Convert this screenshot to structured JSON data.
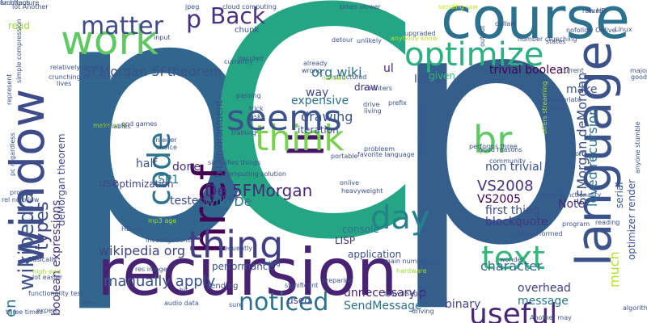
{
  "title": "",
  "words": [
    {
      "text": "p",
      "color": "#31668e"
    },
    {
      "text": "C",
      "color": "#25a584"
    },
    {
      "text": "p",
      "color": "#345f8d"
    },
    {
      "text": "recursion",
      "color": "#482374"
    },
    {
      "text": "window",
      "color": "#3e4c8a"
    },
    {
      "text": "language",
      "color": "#3b528b"
    },
    {
      "text": "course",
      "color": "#2c718e"
    },
    {
      "text": "work",
      "color": "#5ec962"
    },
    {
      "text": "href",
      "color": "#440154"
    },
    {
      "text": "li",
      "color": "#481668"
    },
    {
      "text": "think",
      "color": "#7ad151"
    },
    {
      "text": "br",
      "color": "#5ec962"
    },
    {
      "text": "seems",
      "color": "#3b528b"
    },
    {
      "text": "optimize",
      "color": "#2bb07f"
    },
    {
      "text": "thing",
      "color": "#433e85"
    },
    {
      "text": "code",
      "color": "#2b748e"
    },
    {
      "text": "day",
      "color": "#26818e"
    },
    {
      "text": "text",
      "color": "#35b779"
    },
    {
      "text": "useful",
      "color": "#482677"
    },
    {
      "text": "matter",
      "color": "#3e4a89"
    },
    {
      "text": "p",
      "color": "#46327e"
    },
    {
      "text": "Back",
      "color": "#46327e"
    },
    {
      "text": "noticed",
      "color": "#2c718e"
    },
    {
      "text": "types",
      "color": "#3e4c8a"
    },
    {
      "text": "wikipedia",
      "color": "#3b528b"
    },
    {
      "text": "en",
      "color": "#2d708e"
    },
    {
      "text": "5FMorgan 5Ftheorem",
      "color": "#3b528b"
    },
    {
      "text": "org wiki",
      "color": "#2c728e"
    },
    {
      "text": "trivial boolean",
      "color": "#440154"
    },
    {
      "text": "Int32",
      "color": "#3b528b"
    },
    {
      "text": "manually apply",
      "color": "#3b528b"
    },
    {
      "text": "wikipedia org",
      "color": "#424186"
    },
    {
      "text": "boolean expressions",
      "color": "#46327e"
    },
    {
      "text": "deMorgan theorem",
      "color": "#3e4a89"
    },
    {
      "text": "SendMessage",
      "color": "#2c728e"
    },
    {
      "text": "unnecessary p",
      "color": "#481f70"
    },
    {
      "text": "optimization",
      "color": "#414487"
    },
    {
      "text": "De 5FMorgan",
      "color": "#482878"
    },
    {
      "text": "wiki De",
      "color": "#2a788e"
    },
    {
      "text": "tested",
      "color": "#3e4a89"
    },
    {
      "text": "VS2008",
      "color": "#46337f"
    },
    {
      "text": "VS2005",
      "color": "#440154"
    },
    {
      "text": "non trivial",
      "color": "#3b528b"
    },
    {
      "text": "first thing",
      "color": "#3e4c8a"
    },
    {
      "text": "blockquote",
      "color": "#46327e"
    },
    {
      "text": "5FMorgan deMorgan",
      "color": "#3b528b"
    },
    {
      "text": "loved recursion",
      "color": "#2c718e"
    },
    {
      "text": "character",
      "color": "#31688e"
    },
    {
      "text": "overhead",
      "color": "#424186"
    },
    {
      "text": "binary",
      "color": "#414487"
    },
    {
      "text": "message",
      "color": "#2a788e"
    },
    {
      "text": "much",
      "color": "#b5de2b"
    },
    {
      "text": "Note",
      "color": "#472c7a"
    },
    {
      "text": "serial",
      "color": "#365c8d"
    },
    {
      "text": "make",
      "color": "#3b528b"
    },
    {
      "text": "optimizer render",
      "color": "#3b528b"
    },
    {
      "text": "screen",
      "color": "#21918c"
    },
    {
      "text": "expressions",
      "color": "#2c718e"
    },
    {
      "text": "bit environment",
      "color": "#3e4a89"
    },
    {
      "text": "drawing",
      "color": "#3b528b"
    },
    {
      "text": "expensive",
      "color": "#2c728e"
    },
    {
      "text": "iteration",
      "color": "#3b528b"
    },
    {
      "text": "way",
      "color": "#3e4a89"
    },
    {
      "text": "given",
      "color": "#37b878"
    },
    {
      "text": "draw",
      "color": "#46327e"
    },
    {
      "text": "ul",
      "color": "#482475"
    },
    {
      "text": "half",
      "color": "#3b528b"
    },
    {
      "text": "done",
      "color": "#46327e"
    },
    {
      "text": "SP1",
      "color": "#2c718e"
    },
    {
      "text": "use",
      "color": "#3e4a89"
    },
    {
      "text": "console",
      "color": "#2c718e"
    },
    {
      "text": "LISP",
      "color": "#46327e"
    },
    {
      "text": "application",
      "color": "#3b528b"
    },
    {
      "text": "performance",
      "color": "#3b528b"
    },
    {
      "text": "used",
      "color": "#424186"
    },
    {
      "text": "sending",
      "color": "#3e4a89"
    },
    {
      "text": "read",
      "color": "#a0da39"
    },
    {
      "text": "chunk",
      "color": "#3b528b"
    },
    {
      "text": "jpeg",
      "color": "#3b528b"
    },
    {
      "text": "cloud computing",
      "color": "#3b528b"
    },
    {
      "text": "times slower",
      "color": "#3b528b"
    },
    {
      "text": "sending raw",
      "color": "#cbe11e"
    },
    {
      "text": "raw HD",
      "color": "#3b528b"
    },
    {
      "text": "Linux",
      "color": "#3b528b"
    },
    {
      "text": "nofollow Onlive",
      "color": "#3b528b"
    },
    {
      "text": "number crunching",
      "color": "#3b528b"
    },
    {
      "text": "upgraded",
      "color": "#3b528b"
    },
    {
      "text": "anybody know",
      "color": "#bddf26"
    },
    {
      "text": "unlikely",
      "color": "#3b528b"
    },
    {
      "text": "main application",
      "color": "#3b528b"
    },
    {
      "text": "favorite language",
      "color": "#3b528b"
    },
    {
      "text": "performs three",
      "color": "#3b528b"
    },
    {
      "text": "good reasons",
      "color": "#3b528b"
    },
    {
      "text": "still performed",
      "color": "#3b528b"
    },
    {
      "text": "lot Another",
      "color": "#3b528b"
    },
    {
      "text": "represent",
      "color": "#3b528b"
    },
    {
      "text": "simple compression",
      "color": "#3b528b"
    },
    {
      "text": "crunching algorithm",
      "color": "#3b528b"
    },
    {
      "text": "relatively simple",
      "color": "#3b528b"
    },
    {
      "text": "make sure",
      "color": "#a0da39"
    },
    {
      "text": "end games",
      "color": "#3b528b"
    },
    {
      "text": "simplifies things",
      "color": "#3b528b"
    },
    {
      "text": "computing solution",
      "color": "#3b528b"
    },
    {
      "text": "rel nofollow",
      "color": "#3b528b"
    },
    {
      "text": "pc regardless",
      "color": "#3b528b"
    },
    {
      "text": "HD res",
      "color": "#3b528b"
    },
    {
      "text": "lot easier",
      "color": "#3b528b"
    },
    {
      "text": "three times",
      "color": "#3b528b"
    },
    {
      "text": "functionality test",
      "color": "#3b528b"
    },
    {
      "text": "high end",
      "color": "#a0da39"
    },
    {
      "text": "res image",
      "color": "#3b528b"
    },
    {
      "text": "audio data",
      "color": "#3b528b"
    },
    {
      "text": "Another may",
      "color": "#3b528b"
    },
    {
      "text": "may disagree",
      "color": "#3b528b"
    },
    {
      "text": "main number",
      "color": "#3b528b"
    },
    {
      "text": "anyone stumble",
      "color": "#3b528b"
    },
    {
      "text": "basic functionality",
      "color": "#3b528b"
    },
    {
      "text": "heavyweight",
      "color": "#3b528b"
    },
    {
      "text": "onlive",
      "color": "#3b528b"
    },
    {
      "text": "investigations",
      "color": "#3b528b"
    },
    {
      "text": "hardware",
      "color": "#a0da39"
    },
    {
      "text": "native",
      "color": "#3b528b"
    },
    {
      "text": "wonder",
      "color": "#3b528b"
    },
    {
      "text": "project",
      "color": "#3b528b"
    },
    {
      "text": "trick",
      "color": "#3b528b"
    },
    {
      "text": "ask",
      "color": "#3b528b"
    },
    {
      "text": "passing",
      "color": "#3b528b"
    },
    {
      "text": "training",
      "color": "#3b528b"
    },
    {
      "text": "currently",
      "color": "#3b528b"
    },
    {
      "text": "structured",
      "color": "#3b528b"
    },
    {
      "text": "counters",
      "color": "#3b528b"
    },
    {
      "text": "drive",
      "color": "#3b528b"
    },
    {
      "text": "living",
      "color": "#3b528b"
    },
    {
      "text": "appropriate",
      "color": "#3b528b"
    },
    {
      "text": "lines",
      "color": "#3b528b"
    },
    {
      "text": "states",
      "color": "#3b528b"
    },
    {
      "text": "output",
      "color": "#3b528b"
    },
    {
      "text": "dollars",
      "color": "#3b528b"
    },
    {
      "text": "good",
      "color": "#3b528b"
    },
    {
      "text": "major",
      "color": "#3b528b"
    },
    {
      "text": "detour",
      "color": "#3b528b"
    },
    {
      "text": "already",
      "color": "#3b528b"
    },
    {
      "text": "wrong",
      "color": "#3b528b"
    },
    {
      "text": "decided",
      "color": "#3b528b"
    },
    {
      "text": "community",
      "color": "#3b528b"
    },
    {
      "text": "offers streaming",
      "color": "#a0da39"
    },
    {
      "text": "algorithm performs",
      "color": "#3b528b"
    },
    {
      "text": "frequently",
      "color": "#3b528b"
    },
    {
      "text": "essentially",
      "color": "#3b528b"
    },
    {
      "text": "significant",
      "color": "#3b528b"
    },
    {
      "text": "preparing",
      "color": "#3b528b"
    },
    {
      "text": "coding",
      "color": "#3b528b"
    },
    {
      "text": "expert",
      "color": "#3b528b"
    },
    {
      "text": "little",
      "color": "#3b528b"
    },
    {
      "text": "Basically",
      "color": "#3b528b"
    },
    {
      "text": "integer",
      "color": "#3b528b"
    },
    {
      "text": "choice",
      "color": "#3b528b"
    },
    {
      "text": "variables",
      "color": "#3b528b"
    },
    {
      "text": "probleem",
      "color": "#3b528b"
    },
    {
      "text": "portable",
      "color": "#3b528b"
    },
    {
      "text": "ports",
      "color": "#3b528b"
    },
    {
      "text": "program",
      "color": "#3b528b"
    },
    {
      "text": "driving",
      "color": "#3b528b"
    },
    {
      "text": "current",
      "color": "#3b528b"
    },
    {
      "text": "sure",
      "color": "#3b528b"
    },
    {
      "text": "runs",
      "color": "#3b528b"
    },
    {
      "text": "lives",
      "color": "#3b528b"
    },
    {
      "text": "input",
      "color": "#3b528b"
    },
    {
      "text": "mp3 age",
      "color": "#a0da39"
    },
    {
      "text": "hit",
      "color": "#3b528b"
    },
    {
      "text": "reading",
      "color": "#3b528b"
    },
    {
      "text": "prefix",
      "color": "#3b528b"
    },
    {
      "text": "instead",
      "color": "#a0da39"
    },
    {
      "text": "functions",
      "color": "#3b528b"
    },
    {
      "text": "architecture",
      "color": "#3b528b"
    }
  ]
}
